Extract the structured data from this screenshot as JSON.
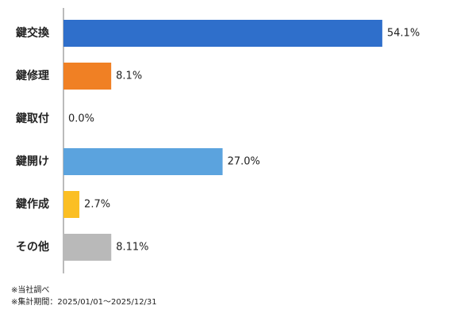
{
  "chart_data": {
    "type": "barh",
    "categories": [
      "鍵交換",
      "鍵修理",
      "鍵取付",
      "鍵開け",
      "鍵作成",
      "その他"
    ],
    "values": [
      54.1,
      8.1,
      0.0,
      27.0,
      2.7,
      8.11
    ],
    "value_labels": [
      "54.1%",
      "8.1%",
      "0.0%",
      "27.0%",
      "2.7%",
      "8.11%"
    ],
    "colors": [
      "#2f6fcb",
      "#f08024",
      "#999999",
      "#5ba3de",
      "#fbbf24",
      "#b9b9b9"
    ],
    "xlim": [
      0,
      70
    ],
    "notes": [
      "※当社調べ",
      "※集計期間：2025/01/01～2025/12/31"
    ]
  }
}
